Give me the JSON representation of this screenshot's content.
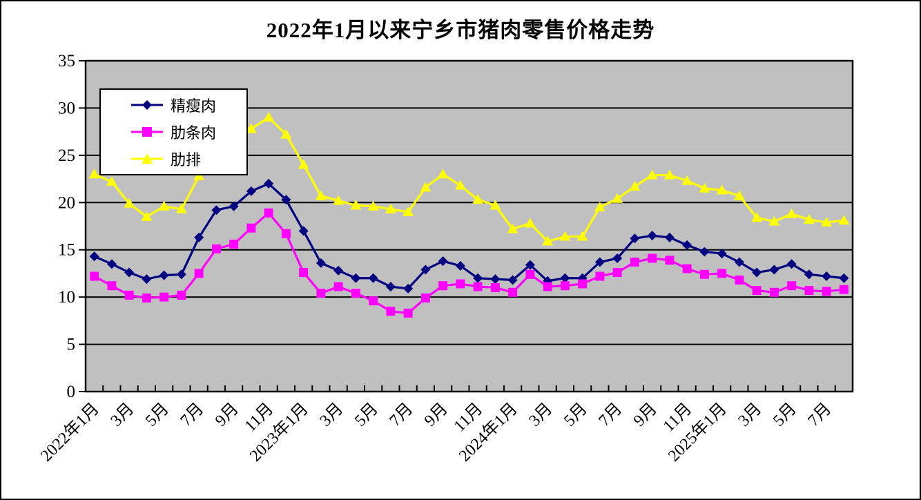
{
  "title": "2022年1月以来宁乡市猪肉零售价格走势",
  "chart_data": {
    "type": "line",
    "title": "2022年1月以来宁乡市猪肉零售价格走势",
    "xlabel": "",
    "ylabel": "",
    "ylim": [
      0,
      35
    ],
    "y_ticks": [
      0,
      5,
      10,
      15,
      20,
      25,
      30,
      35
    ],
    "grid": "horizontal",
    "plot_background": "#c0c0c0",
    "grid_color": "#000000",
    "legend_position": "top-left-inside",
    "x_start": "2022年1月",
    "x_end": "2025年8月",
    "total_points": 44,
    "label_every_n_points": 2,
    "x_tick_labels": [
      "2022年1月",
      "3月",
      "5月",
      "7月",
      "9月",
      "11月",
      "2023年1月",
      "3月",
      "5月",
      "7月",
      "9月",
      "11月",
      "2024年1月",
      "3月",
      "5月",
      "7月",
      "9月",
      "11月",
      "2025年1月",
      "3月",
      "5月",
      "7月"
    ],
    "series": [
      {
        "name": "精瘦肉",
        "color": "#000080",
        "marker": "diamond",
        "values": [
          14.3,
          13.5,
          12.6,
          11.9,
          12.3,
          12.4,
          16.3,
          19.2,
          19.6,
          21.2,
          22.0,
          20.3,
          17.0,
          13.6,
          12.8,
          12.0,
          12.0,
          11.1,
          10.9,
          12.9,
          13.8,
          13.3,
          12.0,
          11.9,
          11.8,
          13.4,
          11.7,
          12.0,
          12.0,
          13.7,
          14.1,
          16.2,
          16.5,
          16.3,
          15.5,
          14.8,
          14.6,
          13.7,
          12.6,
          12.9,
          13.5,
          12.4,
          12.2,
          12.0
        ]
      },
      {
        "name": "肋条肉",
        "color": "#ff00ff",
        "marker": "square",
        "values": [
          12.2,
          11.2,
          10.2,
          9.9,
          10.0,
          10.2,
          12.5,
          15.1,
          15.6,
          17.3,
          18.9,
          16.7,
          12.6,
          10.4,
          11.1,
          10.4,
          9.6,
          8.5,
          8.3,
          9.9,
          11.2,
          11.4,
          11.1,
          11.0,
          10.5,
          12.4,
          11.1,
          11.2,
          11.4,
          12.2,
          12.6,
          13.7,
          14.1,
          13.9,
          13.0,
          12.4,
          12.5,
          11.8,
          10.7,
          10.5,
          11.2,
          10.7,
          10.6,
          10.8
        ]
      },
      {
        "name": "肋排",
        "color": "#ffff00",
        "marker": "triangle",
        "values": [
          23.0,
          22.2,
          19.9,
          18.5,
          19.6,
          19.3,
          22.8,
          25.8,
          27.2,
          27.8,
          29.0,
          27.2,
          24.0,
          20.7,
          20.2,
          19.7,
          19.6,
          19.3,
          19.0,
          21.6,
          23.0,
          21.8,
          20.3,
          19.7,
          17.2,
          17.8,
          15.9,
          16.4,
          16.4,
          19.5,
          20.4,
          21.7,
          22.9,
          22.9,
          22.3,
          21.5,
          21.3,
          20.7,
          18.4,
          18.0,
          18.8,
          18.2,
          17.9,
          18.1
        ]
      }
    ]
  }
}
